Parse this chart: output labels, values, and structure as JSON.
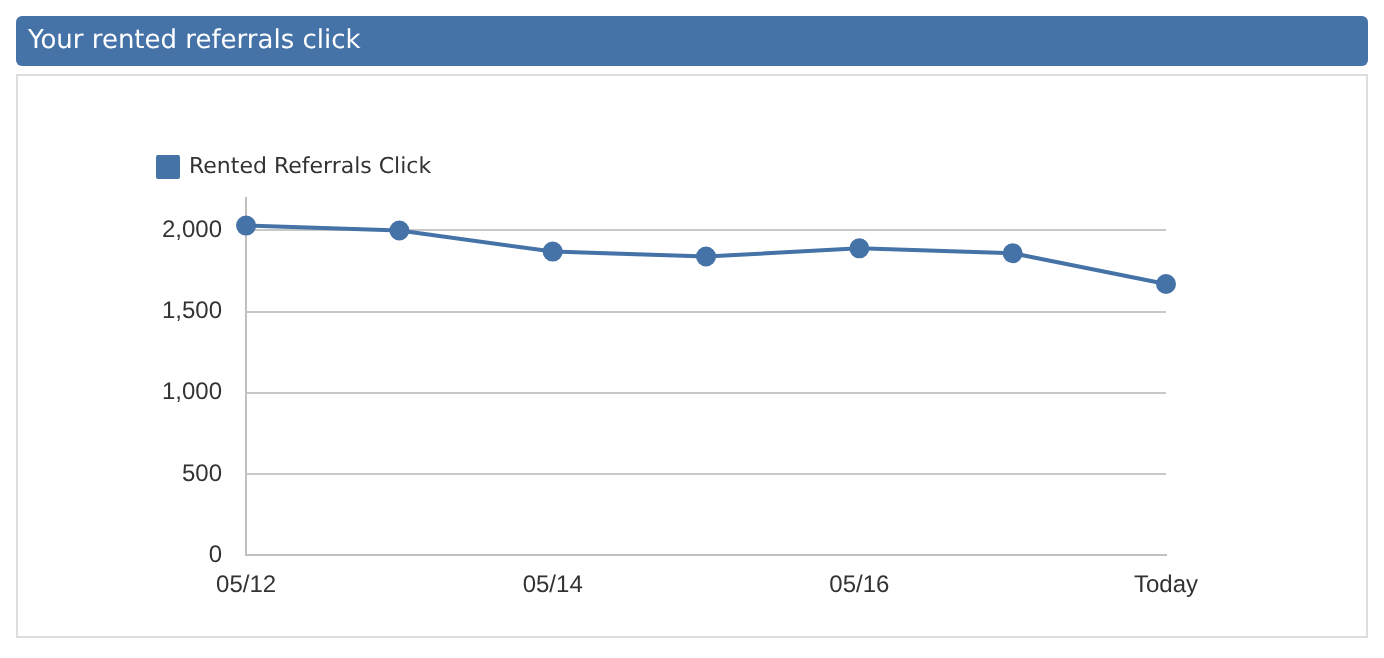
{
  "chart_data": {
    "type": "line",
    "title": "Your rented referrals click",
    "categories": [
      "05/12",
      null,
      "05/14",
      null,
      "05/16",
      null,
      "Today"
    ],
    "series": [
      {
        "name": "Rented Referrals Click",
        "color": "#4572a7",
        "values": [
          2030,
          2000,
          1870,
          1840,
          1890,
          1860,
          1670
        ]
      }
    ],
    "ylim": [
      0,
      2200
    ],
    "yticks": [
      0,
      500,
      {
        "value": 1000,
        "label": "1,000"
      },
      {
        "value": 1500,
        "label": "1,500"
      },
      {
        "value": 2000,
        "label": "2,000"
      }
    ],
    "grid": "y",
    "legend": "top left",
    "marker": "circle",
    "line_style": "solid"
  }
}
